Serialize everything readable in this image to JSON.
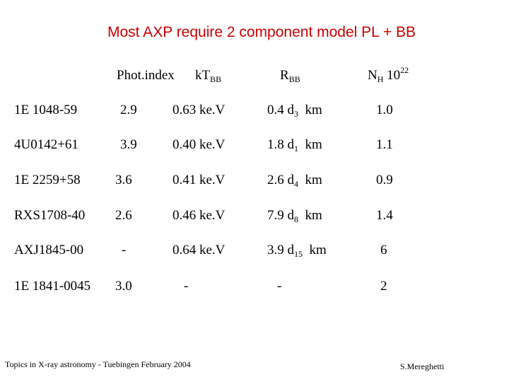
{
  "title": "Most AXP require 2 component model  PL + BB",
  "headers": {
    "phot_index": "Phot.index",
    "kt": {
      "main": "kT",
      "sub": "BB"
    },
    "rbb": {
      "main": "R",
      "sub": "BB"
    },
    "nh": {
      "main": "N",
      "sub": "H",
      "tail": " 10",
      "sup": "22"
    }
  },
  "rows": [
    {
      "name": "1E 1048-59",
      "index": "2.9",
      "kt": "0.63 ke.V",
      "r_pre": "0.4 d",
      "r_sub": "3",
      "r_post": "  km",
      "nh": "1.0"
    },
    {
      "name": "4U0142+61",
      "index": "3.9",
      "kt": "0.40 ke.V",
      "r_pre": "1.8 d",
      "r_sub": "1",
      "r_post": "  km",
      "nh": "1.1"
    },
    {
      "name": "1E 2259+58",
      "index": "3.6",
      "kt": "0.41 ke.V",
      "r_pre": "2.6 d",
      "r_sub": "4",
      "r_post": "  km",
      "nh": "0.9"
    },
    {
      "name": "RXS1708-40",
      "index": "2.6",
      "kt": "0.46 ke.V",
      "r_pre": "7.9 d",
      "r_sub": "8",
      "r_post": "  km",
      "nh": "1.4"
    },
    {
      "name": "AXJ1845-00",
      "index": "-",
      "kt": "0.64 ke.V",
      "r_pre": "3.9 d",
      "r_sub": "15",
      "r_post": "  km",
      "nh": "6"
    },
    {
      "name": "1E 1841-0045",
      "index": "3.0",
      "kt": "-",
      "r_pre": "-",
      "r_sub": "",
      "r_post": "",
      "nh": "2"
    }
  ],
  "footer": {
    "left": "Topics in X-ray astronomy  -  Tuebingen  February 2004",
    "right": "S.Mereghetti"
  },
  "colors": {
    "title": "#cc0000",
    "text": "#000000",
    "background": "#ffffff"
  }
}
